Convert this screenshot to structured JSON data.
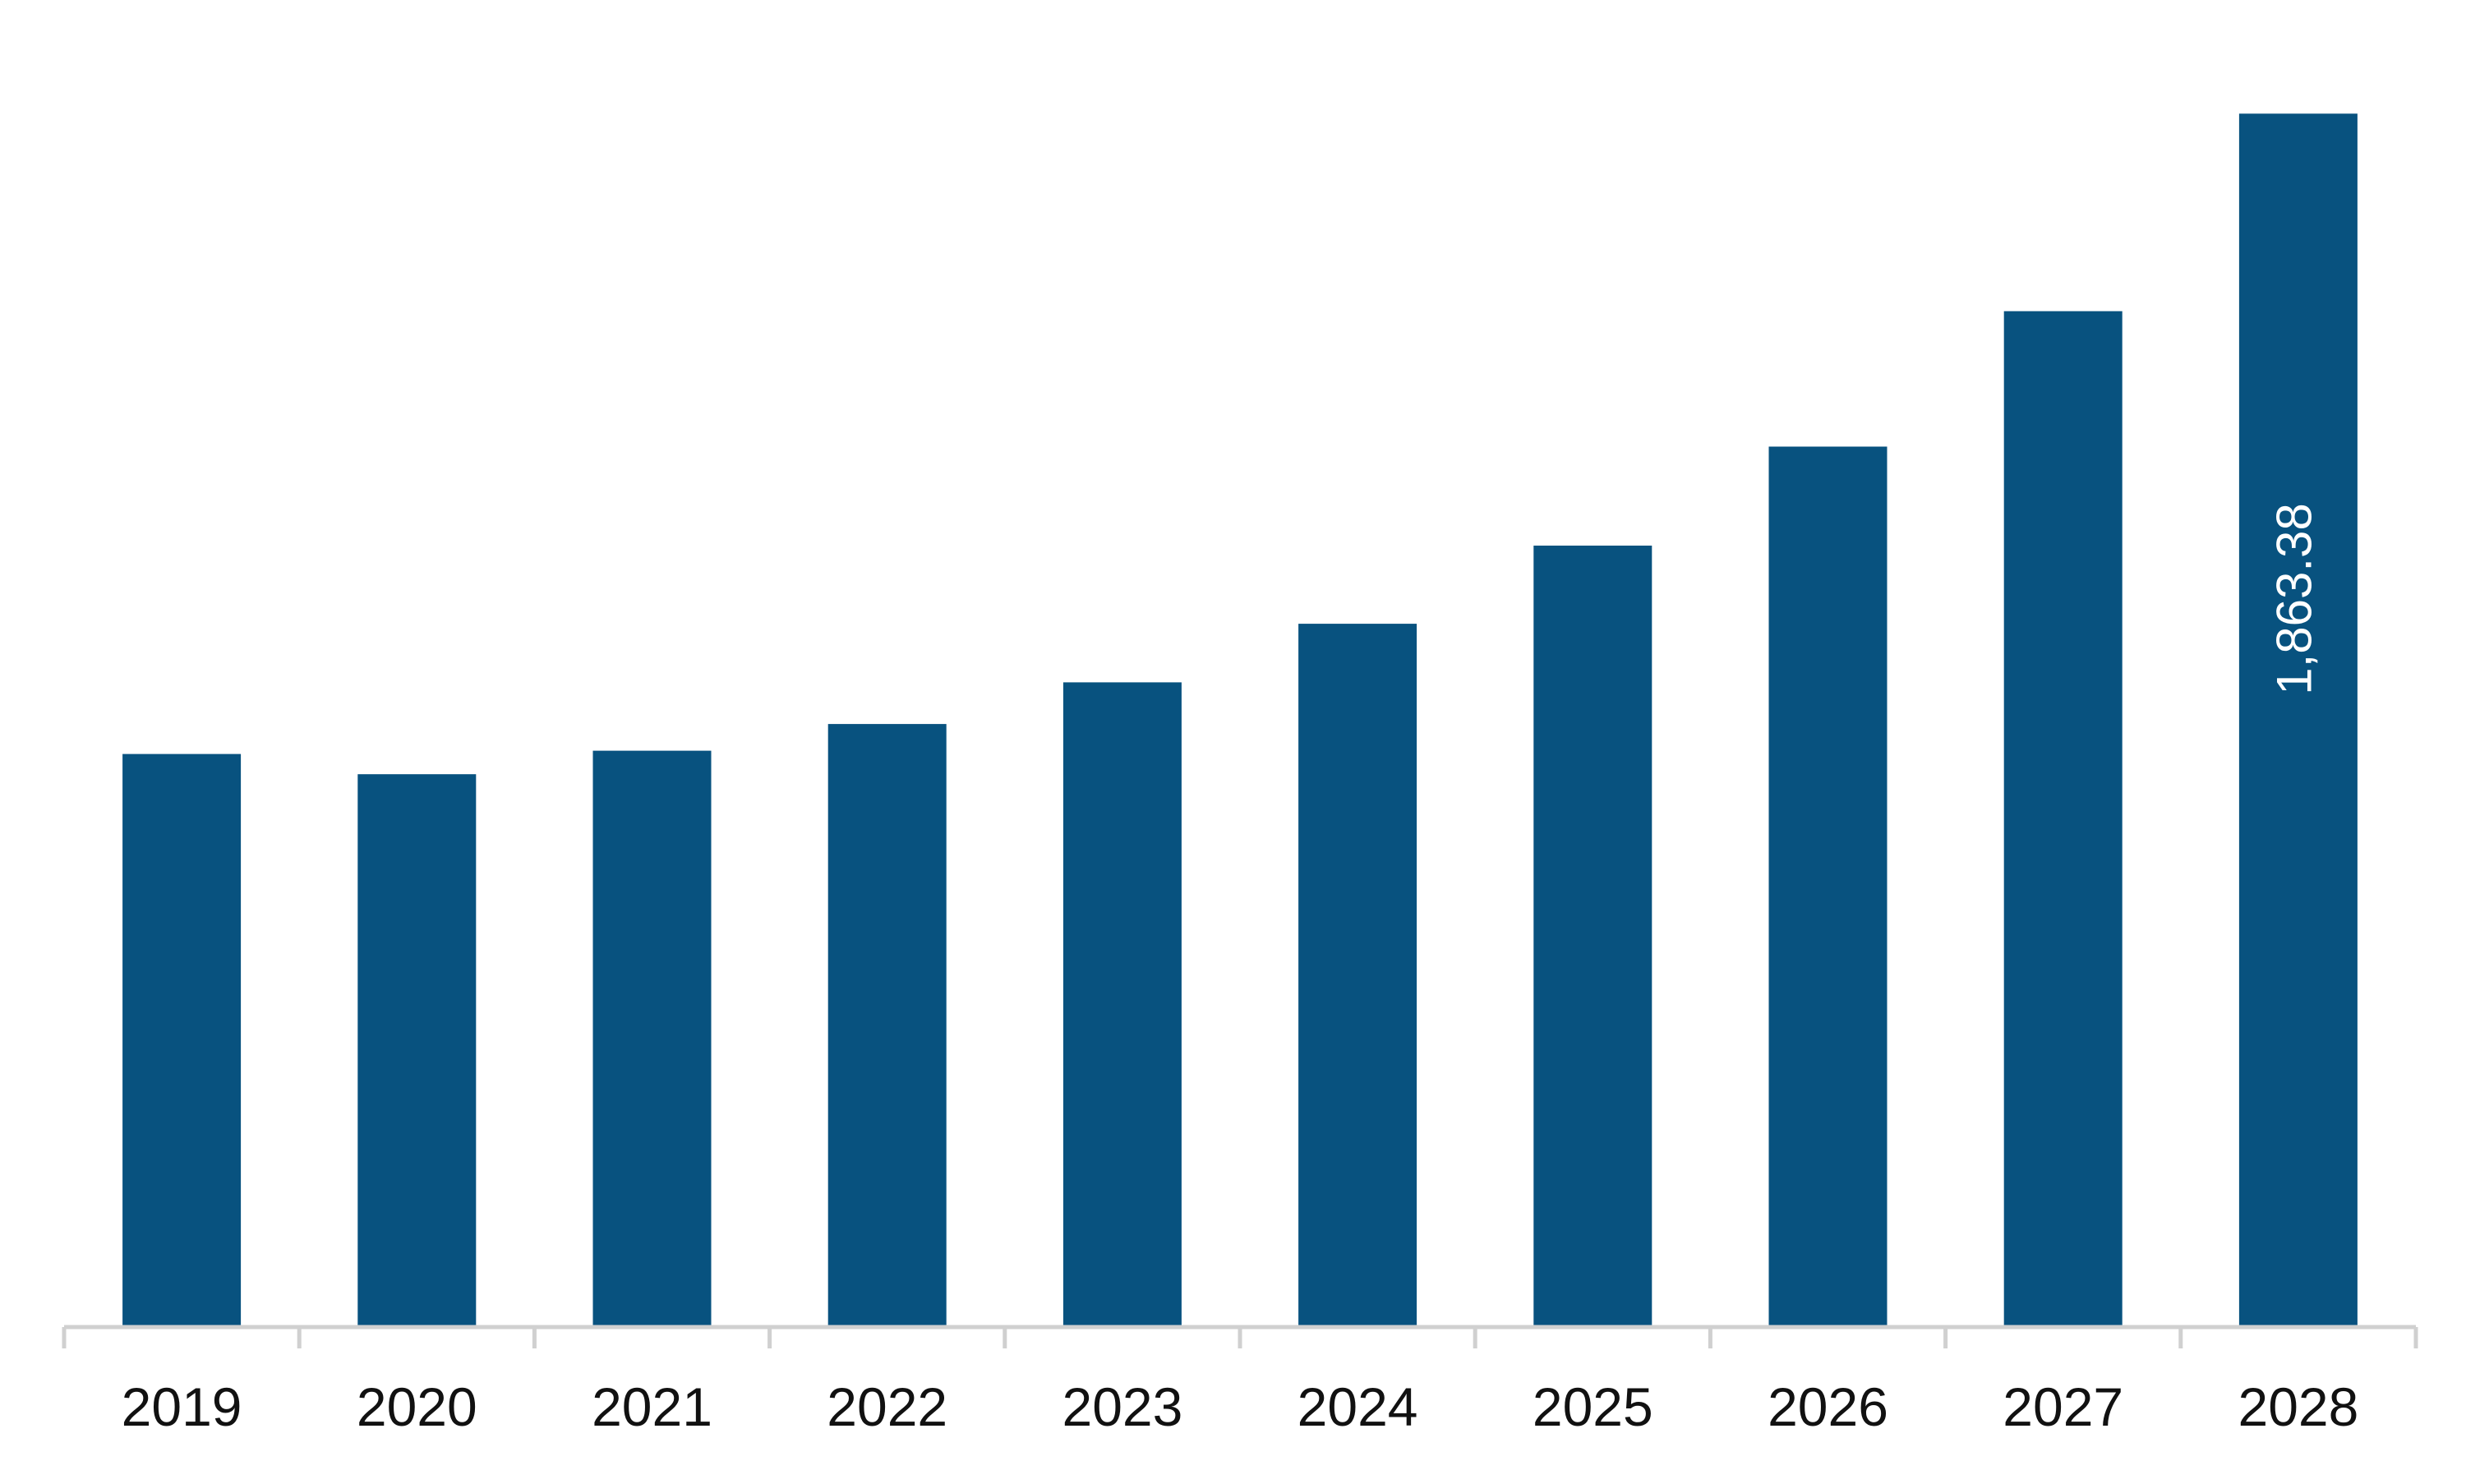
{
  "colors": {
    "bar": "#08527f",
    "axis": "#d0d0d0",
    "tick_label": "#111111",
    "data_label": "#ffffff",
    "background": "#ffffff"
  },
  "chart_data": {
    "type": "bar",
    "categories": [
      "2019",
      "2020",
      "2021",
      "2022",
      "2023",
      "2024",
      "2025",
      "2026",
      "2027",
      "2028"
    ],
    "values": [
      880,
      849,
      885,
      926,
      990,
      1080,
      1200,
      1352,
      1560,
      1863.38
    ],
    "data_labels": [
      "",
      "",
      "",
      "",
      "",
      "",
      "",
      "",
      "",
      "1,863.38"
    ],
    "ylim": [
      0,
      2000
    ],
    "grid": false,
    "legend": "none",
    "title": "",
    "xlabel": "",
    "ylabel": ""
  }
}
